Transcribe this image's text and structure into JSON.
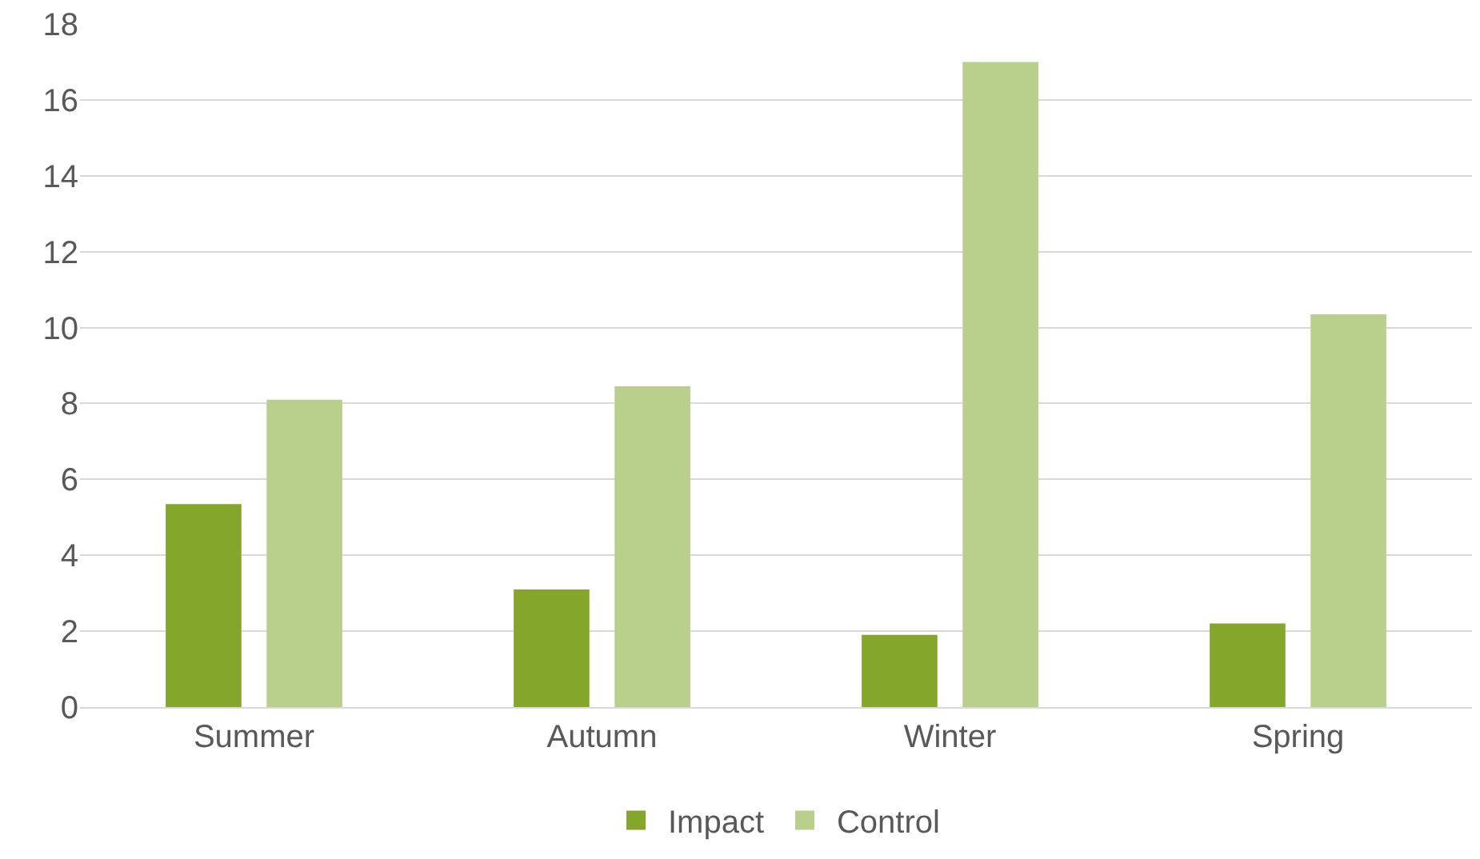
{
  "chart_data": {
    "type": "bar",
    "categories": [
      "Summer",
      "Autumn",
      "Winter",
      "Spring"
    ],
    "series": [
      {
        "name": "Impact",
        "color": "#84a62b",
        "values": [
          5.35,
          3.1,
          1.9,
          2.2
        ]
      },
      {
        "name": "Control",
        "color": "#b8d08c",
        "values": [
          8.1,
          8.45,
          17.0,
          10.35
        ]
      }
    ],
    "ylim": [
      0,
      18
    ],
    "yticks": [
      0,
      2,
      4,
      6,
      8,
      10,
      12,
      14,
      16,
      18
    ],
    "grid": "y",
    "legend": "bottom"
  }
}
